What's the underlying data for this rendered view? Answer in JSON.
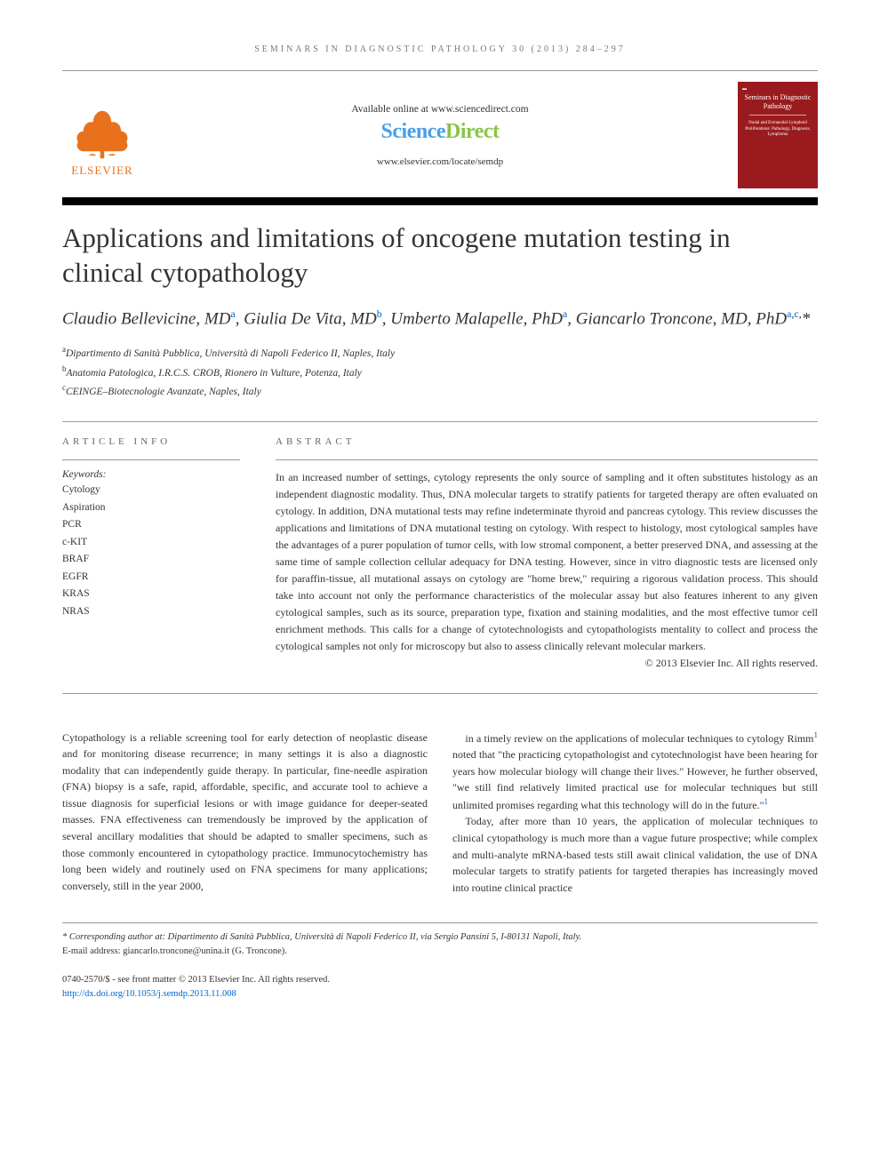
{
  "running_header": "SEMINARS IN DIAGNOSTIC PATHOLOGY 30 (2013) 284–297",
  "masthead": {
    "available": "Available online at www.sciencedirect.com",
    "logo_sci": "Science",
    "logo_direct": "Direct",
    "locate": "www.elsevier.com/locate/semdp",
    "elsevier": "ELSEVIER",
    "cover_title": "Seminars in Diagnostic Pathology",
    "cover_sub": "Nodal and Extranodal Lymphoid Proliferations: Pathology, Diagnosis, Lymphoma"
  },
  "article": {
    "title": "Applications and limitations of oncogene mutation testing in clinical cytopathology",
    "authors_html": "Claudio Bellevicine, MD<sup class='sup-a'>a</sup>, Giulia De Vita, MD<sup class='sup-b'>b</sup>, Umberto Malapelle, PhD<sup class='sup-a'>a</sup>, Giancarlo Troncone, MD, PhD<sup class='sup-a'>a</sup><sup>,</sup><sup class='sup-c'>c</sup><sup>,</sup>*"
  },
  "affiliations": [
    {
      "sup": "a",
      "text": "Dipartimento di Sanità Pubblica, Università di Napoli Federico II, Naples, Italy"
    },
    {
      "sup": "b",
      "text": "Anatomia Patologica, I.R.C.S. CROB, Rionero in Vulture, Potenza, Italy"
    },
    {
      "sup": "c",
      "text": "CEINGE–Biotecnologie Avanzate, Naples, Italy"
    }
  ],
  "info_heading": "ARTICLE INFO",
  "abstract_heading": "ABSTRACT",
  "keywords_label": "Keywords:",
  "keywords": [
    "Cytology",
    "Aspiration",
    "PCR",
    "c-KIT",
    "BRAF",
    "EGFR",
    "KRAS",
    "NRAS"
  ],
  "abstract": "In an increased number of settings, cytology represents the only source of sampling and it often substitutes histology as an independent diagnostic modality. Thus, DNA molecular targets to stratify patients for targeted therapy are often evaluated on cytology. In addition, DNA mutational tests may refine indeterminate thyroid and pancreas cytology. This review discusses the applications and limitations of DNA mutational testing on cytology. With respect to histology, most cytological samples have the advantages of a purer population of tumor cells, with low stromal component, a better preserved DNA, and assessing at the same time of sample collection cellular adequacy for DNA testing. However, since in vitro diagnostic tests are licensed only for paraffin-tissue, all mutational assays on cytology are \"home brew,\" requiring a rigorous validation process. This should take into account not only the performance characteristics of the molecular assay but also features inherent to any given cytological samples, such as its source, preparation type, fixation and staining modalities, and the most effective tumor cell enrichment methods. This calls for a change of cytotechnologists and cytopathologists mentality to collect and process the cytological samples not only for microscopy but also to assess clinically relevant molecular markers.",
  "abstract_copyright": "© 2013 Elsevier Inc. All rights reserved.",
  "body": {
    "p1": "Cytopathology is a reliable screening tool for early detection of neoplastic disease and for monitoring disease recurrence; in many settings it is also a diagnostic modality that can independently guide therapy. In particular, fine-needle aspiration (FNA) biopsy is a safe, rapid, affordable, specific, and accurate tool to achieve a tissue diagnosis for superficial lesions or with image guidance for deeper-seated masses. FNA effectiveness can tremendously be improved by the application of several ancillary modalities that should be adapted to smaller specimens, such as those commonly encountered in cytopathology practice. Immunocytochemistry has long been widely and routinely used on FNA specimens for many applications; conversely, still in the year 2000,",
    "p2_pre": "in a timely review on the applications of molecular techniques to cytology Rimm",
    "p2_post": " noted that \"the practicing cytopathologist and cytotechnologist have been hearing for years how molecular biology will change their lives.\" However, he further observed, \"we still find relatively limited practical use for molecular techniques but still unlimited promises regarding what this technology will do in the future.\"",
    "p3": "Today, after more than 10 years, the application of molecular techniques to clinical cytopathology is much more than a vague future prospective; while complex and multi-analyte mRNA-based tests still await clinical validation, the use of DNA molecular targets to stratify patients for targeted therapies has increasingly moved into routine clinical practice",
    "ref1": "1"
  },
  "footnotes": {
    "corresponding": "* Corresponding author at: Dipartimento di Sanità Pubblica, Università di Napoli Federico II, via Sergio Pansini 5, I-80131 Napoli, Italy.",
    "email_label": "E-mail address: ",
    "email": "giancarlo.troncone@unina.it",
    "email_name": " (G. Troncone)."
  },
  "bottom": {
    "front_matter": "0740-2570/$ - see front matter © 2013 Elsevier Inc. All rights reserved.",
    "doi": "http://dx.doi.org/10.1053/j.semdp.2013.11.008"
  },
  "colors": {
    "elsevier_orange": "#e9711c",
    "sci_blue": "#4aa0e6",
    "direct_green": "#8bc34a",
    "link_blue": "#0066cc",
    "cover_red": "#9a1b1e",
    "text": "#333333",
    "rule": "#999999"
  }
}
